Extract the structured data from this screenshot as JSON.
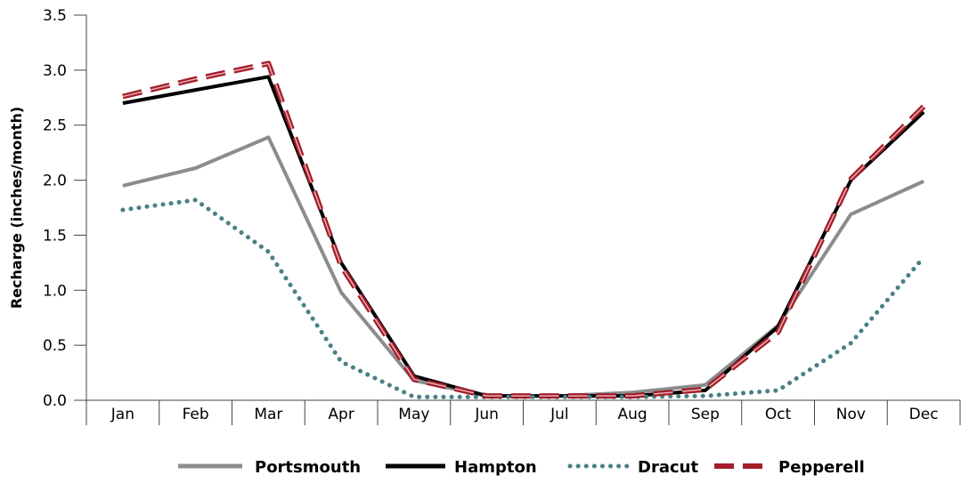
{
  "chart_data": {
    "type": "line",
    "categories": [
      "Jan",
      "Feb",
      "Mar",
      "Apr",
      "May",
      "Jun",
      "Jul",
      "Aug",
      "Sep",
      "Oct",
      "Nov",
      "Dec"
    ],
    "ylabel": "Recharge (inches/month)",
    "xlabel": "",
    "ylim": [
      0,
      3.5
    ],
    "yticks": [
      "0.0",
      "0.5",
      "1.0",
      "1.5",
      "2.0",
      "2.5",
      "3.0",
      "3.5"
    ],
    "grid": false,
    "legend_position": "bottom",
    "series": [
      {
        "name": "Portsmouth",
        "color": "#8c8c8c",
        "style": "solid",
        "values": [
          1.95,
          2.11,
          2.39,
          0.98,
          0.18,
          0.04,
          0.04,
          0.07,
          0.14,
          0.68,
          1.69,
          1.99
        ]
      },
      {
        "name": "Hampton",
        "color": "#000000",
        "style": "solid",
        "values": [
          2.7,
          2.82,
          2.94,
          1.25,
          0.22,
          0.04,
          0.04,
          0.04,
          0.09,
          0.67,
          2.0,
          2.62
        ]
      },
      {
        "name": "Dracut",
        "color": "#4a8084",
        "style": "dotted",
        "values": [
          1.73,
          1.82,
          1.35,
          0.35,
          0.03,
          0.03,
          0.03,
          0.03,
          0.04,
          0.09,
          0.52,
          1.3
        ]
      },
      {
        "name": "Pepperell",
        "color": "#a51d2b",
        "style": "dashed",
        "values": [
          2.76,
          2.92,
          3.06,
          1.22,
          0.19,
          0.04,
          0.04,
          0.04,
          0.1,
          0.62,
          2.01,
          2.67
        ]
      }
    ]
  }
}
